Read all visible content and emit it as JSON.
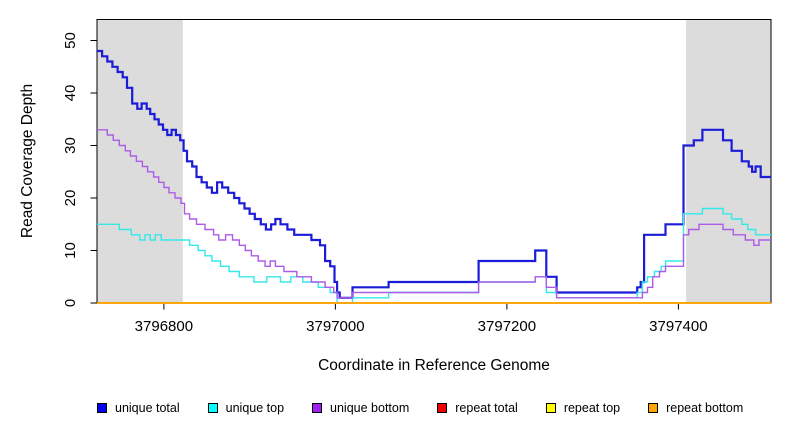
{
  "chart_data": {
    "type": "line",
    "subtype": "step-coverage-plot",
    "title": "",
    "xlabel": "Coordinate in Reference Genome",
    "ylabel": "Read Coverage Depth",
    "xlim": [
      3796722,
      3797508
    ],
    "ylim": [
      0,
      50
    ],
    "x_ticks": [
      3796800,
      3797000,
      3797200,
      3797400
    ],
    "y_ticks": [
      0,
      10,
      20,
      30,
      40,
      50
    ],
    "grid": false,
    "legend_position": "bottom",
    "frame_color": "#000000",
    "background_color": "#ffffff",
    "shaded_regions": [
      {
        "name": "repeat-region-left",
        "from": 3796722,
        "to": 3796822,
        "color": "#DCDCDC"
      },
      {
        "name": "repeat-region-right",
        "from": 3797409,
        "to": 3797508,
        "color": "#DCDCDC"
      }
    ],
    "series": [
      {
        "name": "unique total",
        "color": "#1B1BD8",
        "swatch": "#0000EE",
        "line_width": 2.2,
        "steps": [
          [
            3796722,
            48
          ],
          [
            3796728,
            47
          ],
          [
            3796734,
            46
          ],
          [
            3796740,
            45
          ],
          [
            3796746,
            44
          ],
          [
            3796752,
            43
          ],
          [
            3796757,
            41
          ],
          [
            3796763,
            38
          ],
          [
            3796769,
            37
          ],
          [
            3796774,
            38
          ],
          [
            3796780,
            37
          ],
          [
            3796784,
            36
          ],
          [
            3796789,
            35
          ],
          [
            3796794,
            34
          ],
          [
            3796799,
            33
          ],
          [
            3796804,
            32
          ],
          [
            3796809,
            33
          ],
          [
            3796814,
            32
          ],
          [
            3796819,
            31
          ],
          [
            3796823,
            29
          ],
          [
            3796827,
            27
          ],
          [
            3796833,
            26
          ],
          [
            3796838,
            24
          ],
          [
            3796844,
            23
          ],
          [
            3796850,
            22
          ],
          [
            3796856,
            21
          ],
          [
            3796862,
            23
          ],
          [
            3796868,
            22
          ],
          [
            3796875,
            21
          ],
          [
            3796882,
            20
          ],
          [
            3796888,
            19
          ],
          [
            3796894,
            18
          ],
          [
            3796900,
            17
          ],
          [
            3796906,
            16
          ],
          [
            3796913,
            15
          ],
          [
            3796919,
            14
          ],
          [
            3796925,
            15
          ],
          [
            3796930,
            16
          ],
          [
            3796936,
            15
          ],
          [
            3796944,
            14
          ],
          [
            3796952,
            13
          ],
          [
            3796972,
            12
          ],
          [
            3796982,
            11
          ],
          [
            3796988,
            8
          ],
          [
            3796994,
            7
          ],
          [
            3796999,
            4
          ],
          [
            3797002,
            2
          ],
          [
            3797005,
            1
          ],
          [
            3797020,
            3
          ],
          [
            3797062,
            4
          ],
          [
            3797167,
            8
          ],
          [
            3797233,
            10
          ],
          [
            3797246,
            5
          ],
          [
            3797258,
            2
          ],
          [
            3797352,
            3
          ],
          [
            3797356,
            4
          ],
          [
            3797360,
            13
          ],
          [
            3797385,
            15
          ],
          [
            3797406,
            30
          ],
          [
            3797418,
            31
          ],
          [
            3797428,
            33
          ],
          [
            3797452,
            31
          ],
          [
            3797462,
            29
          ],
          [
            3797474,
            27
          ],
          [
            3797482,
            26
          ],
          [
            3797486,
            25
          ],
          [
            3797490,
            26
          ],
          [
            3797496,
            24
          ]
        ]
      },
      {
        "name": "unique top",
        "color": "#35E8E8",
        "swatch": "#00FFFF",
        "line_width": 1.4,
        "steps": [
          [
            3796722,
            15
          ],
          [
            3796748,
            14
          ],
          [
            3796762,
            13
          ],
          [
            3796772,
            12
          ],
          [
            3796778,
            13
          ],
          [
            3796784,
            12
          ],
          [
            3796790,
            13
          ],
          [
            3796797,
            12
          ],
          [
            3796830,
            11
          ],
          [
            3796840,
            10
          ],
          [
            3796848,
            9
          ],
          [
            3796856,
            8
          ],
          [
            3796866,
            7
          ],
          [
            3796876,
            6
          ],
          [
            3796888,
            5
          ],
          [
            3796905,
            4
          ],
          [
            3796920,
            5
          ],
          [
            3796936,
            4
          ],
          [
            3796948,
            5
          ],
          [
            3796962,
            4
          ],
          [
            3796980,
            3
          ],
          [
            3796994,
            2
          ],
          [
            3797002,
            0
          ],
          [
            3797020,
            1
          ],
          [
            3797062,
            2
          ],
          [
            3797167,
            4
          ],
          [
            3797233,
            5
          ],
          [
            3797246,
            2
          ],
          [
            3797258,
            1
          ],
          [
            3797352,
            2
          ],
          [
            3797358,
            4
          ],
          [
            3797364,
            5
          ],
          [
            3797372,
            6
          ],
          [
            3797380,
            7
          ],
          [
            3797385,
            8
          ],
          [
            3797406,
            17
          ],
          [
            3797428,
            18
          ],
          [
            3797452,
            17
          ],
          [
            3797462,
            16
          ],
          [
            3797474,
            15
          ],
          [
            3797481,
            14
          ],
          [
            3797490,
            13
          ]
        ]
      },
      {
        "name": "unique bottom",
        "color": "#AE5BE8",
        "swatch": "#A020F0",
        "line_width": 1.4,
        "steps": [
          [
            3796722,
            33
          ],
          [
            3796734,
            32
          ],
          [
            3796741,
            31
          ],
          [
            3796748,
            30
          ],
          [
            3796755,
            29
          ],
          [
            3796761,
            28
          ],
          [
            3796768,
            27
          ],
          [
            3796775,
            26
          ],
          [
            3796781,
            25
          ],
          [
            3796788,
            24
          ],
          [
            3796794,
            23
          ],
          [
            3796800,
            22
          ],
          [
            3796806,
            21
          ],
          [
            3796813,
            20
          ],
          [
            3796820,
            19
          ],
          [
            3796824,
            17
          ],
          [
            3796830,
            16
          ],
          [
            3796838,
            15
          ],
          [
            3796848,
            14
          ],
          [
            3796858,
            13
          ],
          [
            3796864,
            12
          ],
          [
            3796872,
            13
          ],
          [
            3796880,
            12
          ],
          [
            3796888,
            11
          ],
          [
            3796895,
            10
          ],
          [
            3796902,
            9
          ],
          [
            3796910,
            8
          ],
          [
            3796918,
            7
          ],
          [
            3796924,
            8
          ],
          [
            3796930,
            7
          ],
          [
            3796940,
            6
          ],
          [
            3796955,
            5
          ],
          [
            3796972,
            4
          ],
          [
            3796988,
            3
          ],
          [
            3796998,
            2
          ],
          [
            3797002,
            1
          ],
          [
            3797020,
            2
          ],
          [
            3797167,
            4
          ],
          [
            3797233,
            5
          ],
          [
            3797246,
            3
          ],
          [
            3797258,
            1
          ],
          [
            3797352,
            1
          ],
          [
            3797358,
            2
          ],
          [
            3797364,
            3
          ],
          [
            3797370,
            5
          ],
          [
            3797378,
            6
          ],
          [
            3797385,
            7
          ],
          [
            3797406,
            13
          ],
          [
            3797412,
            14
          ],
          [
            3797424,
            15
          ],
          [
            3797452,
            14
          ],
          [
            3797464,
            13
          ],
          [
            3797478,
            12
          ],
          [
            3797488,
            11
          ],
          [
            3797494,
            12
          ]
        ]
      },
      {
        "name": "repeat total",
        "color": "#EE0000",
        "swatch": "#EE0000",
        "line_width": 1.4,
        "steps": [
          [
            3796722,
            0
          ]
        ]
      },
      {
        "name": "repeat top",
        "color": "#FFFF00",
        "swatch": "#FFFF00",
        "line_width": 1.4,
        "steps": [
          [
            3796722,
            0
          ]
        ]
      },
      {
        "name": "repeat bottom",
        "color": "#FF9E00",
        "swatch": "#FFA500",
        "line_width": 1.6,
        "steps": [
          [
            3796722,
            0
          ]
        ]
      }
    ]
  }
}
